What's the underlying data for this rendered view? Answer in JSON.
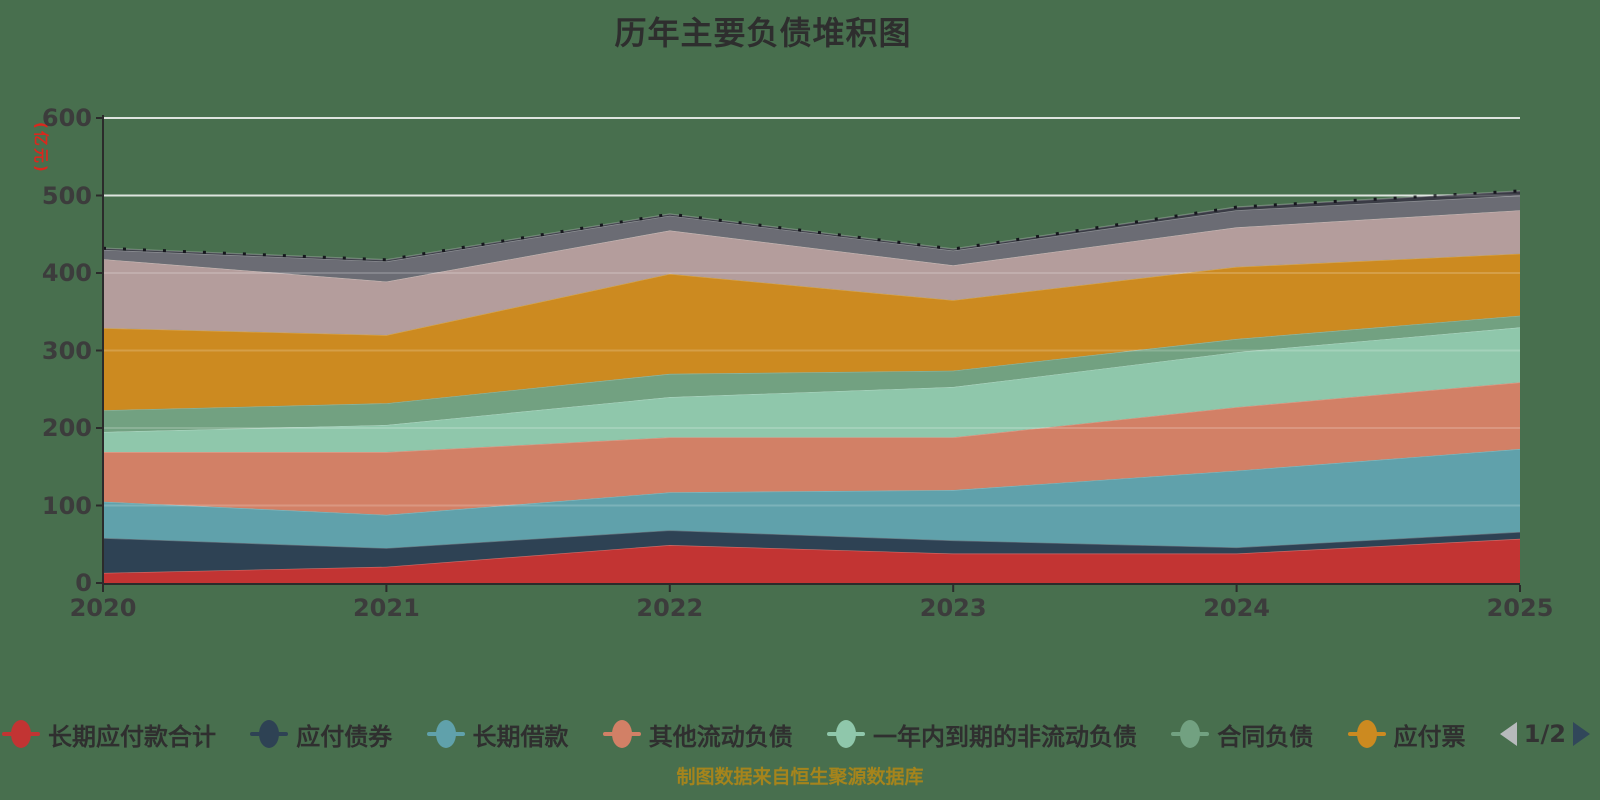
{
  "title": "历年主要负债堆积图",
  "footer": {
    "text": "制图数据来自恒生聚源数据库"
  },
  "y_axis": {
    "unit": "(亿元)",
    "ticks": [
      0,
      100,
      200,
      300,
      400,
      500,
      600
    ]
  },
  "x_axis": {
    "categories": [
      "2020",
      "2021",
      "2022",
      "2023",
      "2024",
      "2025"
    ]
  },
  "chart_data": {
    "type": "area",
    "stacked": true,
    "title": "历年主要负债堆积图",
    "ylabel": "(亿元)",
    "ylim": [
      0,
      600
    ],
    "grid": true,
    "legend_position": "bottom",
    "background_color": "#486f4e",
    "gridline_color": "#c9d0c9",
    "x": [
      "2020",
      "2021",
      "2022",
      "2023",
      "2024",
      "2025"
    ],
    "series": [
      {
        "name": "长期应付款合计",
        "color": "#c23433",
        "values": [
          13,
          21,
          49,
          38,
          38,
          57
        ]
      },
      {
        "name": "应付债券",
        "color": "#2e4254",
        "values": [
          45,
          24,
          19,
          17,
          8,
          9
        ]
      },
      {
        "name": "长期借款",
        "color": "#60a1ab",
        "values": [
          47,
          43,
          49,
          65,
          99,
          107
        ]
      },
      {
        "name": "其他流动负债",
        "color": "#d28066",
        "values": [
          64,
          81,
          71,
          68,
          82,
          86
        ]
      },
      {
        "name": "一年内到期的非流动负债",
        "color": "#8fc7ab",
        "values": [
          26,
          35,
          52,
          65,
          71,
          71
        ]
      },
      {
        "name": "合同负债",
        "color": "#72a181",
        "values": [
          28,
          28,
          30,
          21,
          17,
          15
        ]
      },
      {
        "name": "应付票",
        "color": "#cc8a20",
        "values": [
          106,
          88,
          129,
          91,
          93,
          80
        ]
      },
      {
        "name": "",
        "color": "#b49d9c",
        "values": [
          89,
          69,
          56,
          45,
          51,
          56
        ]
      },
      {
        "name": "",
        "color": "#6b6c74",
        "values": [
          12,
          26,
          19,
          19,
          22,
          19
        ]
      },
      {
        "name": "",
        "color": "#3a3b45",
        "values": [
          2,
          2,
          2,
          2,
          4,
          6
        ]
      }
    ]
  },
  "legend": {
    "items": [
      {
        "label": "长期应付款合计",
        "color": "#c23433"
      },
      {
        "label": "应付债券",
        "color": "#2e4254"
      },
      {
        "label": "长期借款",
        "color": "#60a1ab"
      },
      {
        "label": "其他流动负债",
        "color": "#d28066"
      },
      {
        "label": "一年内到期的非流动负债",
        "color": "#8fc7ab"
      },
      {
        "label": "合同负债",
        "color": "#72a181"
      },
      {
        "label": "应付票",
        "color": "#cc8a20"
      }
    ],
    "pager": {
      "label": "1/2"
    }
  }
}
